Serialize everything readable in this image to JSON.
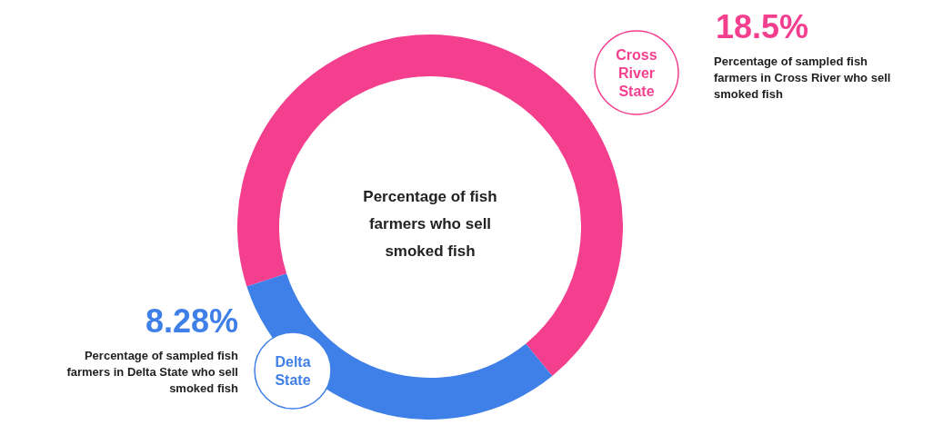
{
  "chart_data": {
    "type": "donut",
    "title": "Percentage of fish farmers who sell smoked fish",
    "categories": [
      "Cross River State",
      "Delta State"
    ],
    "values": [
      18.5,
      8.28
    ],
    "colors": [
      "#f43f8f",
      "#3f7fe8"
    ],
    "value_labels": [
      "18.5%",
      "8.28%"
    ],
    "annotations": [
      "Percentage of sampled fish farmers in Cross River who sell smoked fish",
      "Percentage of sampled fish farmers in Delta State who sell smoked fish"
    ]
  }
}
